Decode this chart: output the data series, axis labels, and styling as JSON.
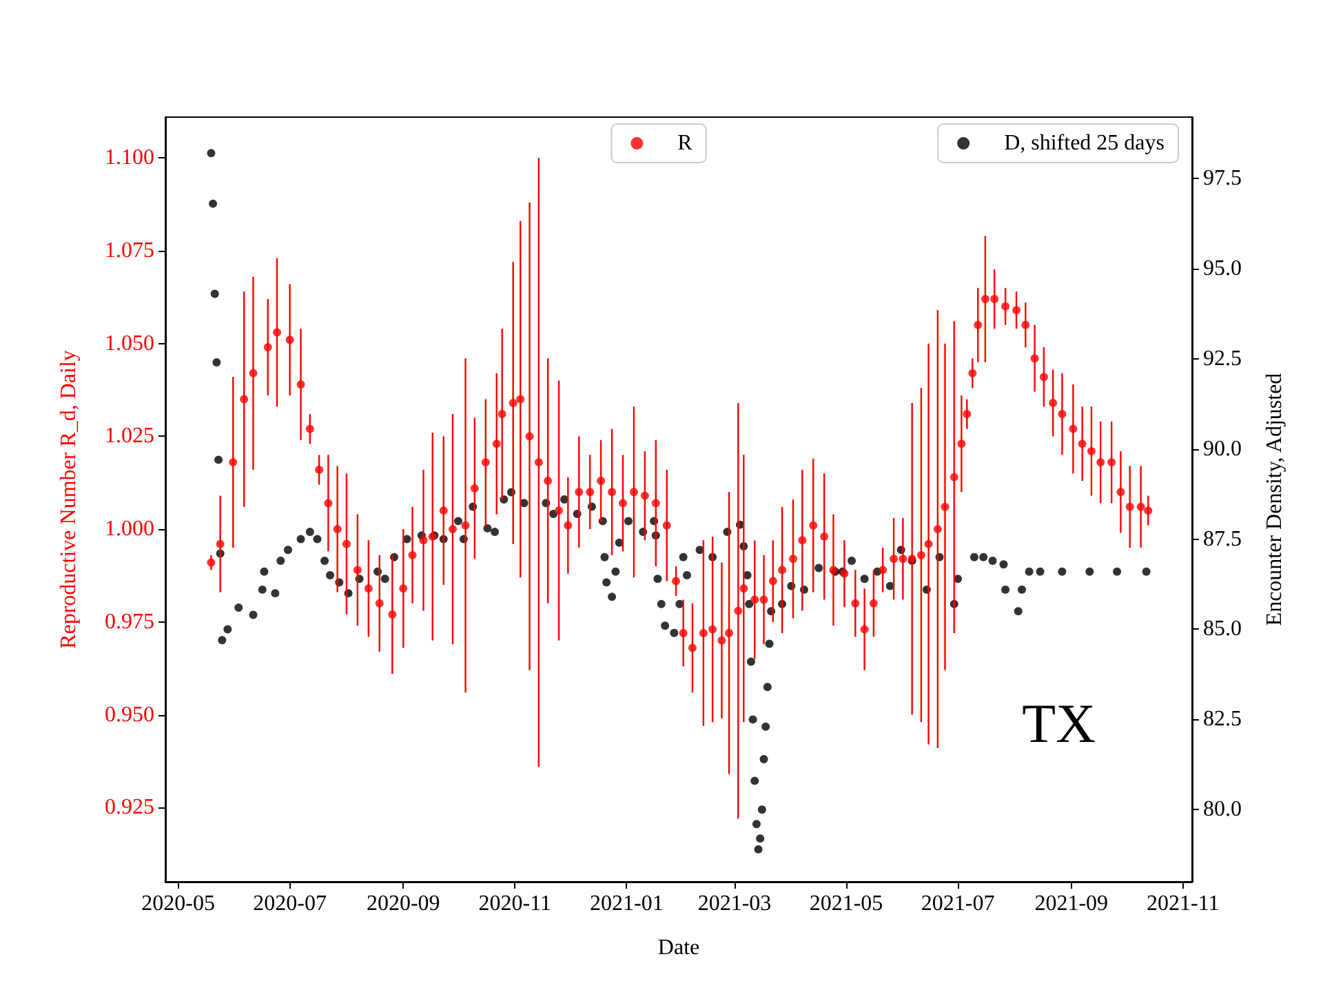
{
  "chart_data": {
    "type": "scatter",
    "xlabel": "Date",
    "ylabel": "Reproductive Number R_d, Daily",
    "y2label": "Encounter Density, Adjusted",
    "xlim": [
      "2020-04-24",
      "2021-11-06"
    ],
    "xticks": [
      "2020-05",
      "2020-07",
      "2020-09",
      "2020-11",
      "2021-01",
      "2021-03",
      "2021-05",
      "2021-07",
      "2021-09",
      "2021-11"
    ],
    "ylim": [
      0.905,
      1.111
    ],
    "yticks": [
      {
        "value": 0.925,
        "label": "0.925"
      },
      {
        "value": 0.95,
        "label": "0.950"
      },
      {
        "value": 0.975,
        "label": "0.975"
      },
      {
        "value": 1.0,
        "label": "1.000"
      },
      {
        "value": 1.025,
        "label": "1.025"
      },
      {
        "value": 1.05,
        "label": "1.050"
      },
      {
        "value": 1.075,
        "label": "1.075"
      },
      {
        "value": 1.1,
        "label": "1.100"
      }
    ],
    "y2lim": [
      78.0,
      99.2
    ],
    "y2ticks": [
      {
        "value": 80,
        "label": "80.0"
      },
      {
        "value": 82.5,
        "label": "82.5"
      },
      {
        "value": 85,
        "label": "85.0"
      },
      {
        "value": 87.5,
        "label": "87.5"
      },
      {
        "value": 90,
        "label": "90.0"
      },
      {
        "value": 92.5,
        "label": "92.5"
      },
      {
        "value": 95,
        "label": "95.0"
      },
      {
        "value": 97.5,
        "label": "97.5"
      }
    ],
    "grid": false,
    "legend": "top right",
    "marker": "circle",
    "annotations": [
      "TX"
    ],
    "series": [
      {
        "name": "R",
        "color": "#ff0000",
        "x": [
          "2020-05-19",
          "2020-05-24",
          "2020-05-31",
          "2020-06-06",
          "2020-06-11",
          "2020-06-19",
          "2020-06-24",
          "2020-07-01",
          "2020-07-07",
          "2020-07-12",
          "2020-07-17",
          "2020-07-22",
          "2020-07-27",
          "2020-08-01",
          "2020-08-07",
          "2020-08-13",
          "2020-08-19",
          "2020-08-26",
          "2020-09-01",
          "2020-09-06",
          "2020-09-12",
          "2020-09-17",
          "2020-09-23",
          "2020-09-28",
          "2020-10-05",
          "2020-10-10",
          "2020-10-16",
          "2020-10-22",
          "2020-10-25",
          "2020-10-31",
          "2020-11-04",
          "2020-11-09",
          "2020-11-14",
          "2020-11-19",
          "2020-11-25",
          "2020-11-30",
          "2020-12-06",
          "2020-12-12",
          "2020-12-18",
          "2020-12-24",
          "2020-12-30",
          "2021-01-05",
          "2021-01-11",
          "2021-01-17",
          "2021-01-23",
          "2021-01-28",
          "2021-02-01",
          "2021-02-06",
          "2021-02-12",
          "2021-02-17",
          "2021-02-22",
          "2021-02-26",
          "2021-03-03",
          "2021-03-06",
          "2021-03-12",
          "2021-03-17",
          "2021-03-22",
          "2021-03-27",
          "2021-04-02",
          "2021-04-07",
          "2021-04-13",
          "2021-04-19",
          "2021-04-24",
          "2021-04-30",
          "2021-05-06",
          "2021-05-11",
          "2021-05-16",
          "2021-05-21",
          "2021-05-27",
          "2021-06-01",
          "2021-06-06",
          "2021-06-11",
          "2021-06-15",
          "2021-06-20",
          "2021-06-24",
          "2021-06-29",
          "2021-07-03",
          "2021-07-06",
          "2021-07-09",
          "2021-07-12",
          "2021-07-16",
          "2021-07-21",
          "2021-07-27",
          "2021-08-02",
          "2021-08-07",
          "2021-08-12",
          "2021-08-17",
          "2021-08-22",
          "2021-08-27",
          "2021-09-02",
          "2021-09-07",
          "2021-09-12",
          "2021-09-17",
          "2021-09-23",
          "2021-09-28",
          "2021-10-03",
          "2021-10-09",
          "2021-10-13"
        ],
        "values": [
          0.991,
          0.996,
          1.018,
          1.035,
          1.042,
          1.049,
          1.053,
          1.051,
          1.039,
          1.027,
          1.016,
          1.007,
          1.0,
          0.996,
          0.989,
          0.984,
          0.98,
          0.977,
          0.984,
          0.993,
          0.997,
          0.998,
          1.005,
          1.0,
          1.001,
          1.011,
          1.018,
          1.023,
          1.031,
          1.034,
          1.035,
          1.025,
          1.018,
          1.013,
          1.005,
          1.001,
          1.01,
          1.01,
          1.013,
          1.01,
          1.007,
          1.01,
          1.009,
          1.007,
          1.001,
          0.986,
          0.972,
          0.968,
          0.972,
          0.973,
          0.97,
          0.972,
          0.978,
          0.984,
          0.981,
          0.981,
          0.986,
          0.989,
          0.992,
          0.997,
          1.001,
          0.998,
          0.989,
          0.988,
          0.98,
          0.973,
          0.98,
          0.989,
          0.992,
          0.992,
          0.992,
          0.993,
          0.996,
          1.0,
          1.006,
          1.014,
          1.023,
          1.031,
          1.042,
          1.055,
          1.062,
          1.062,
          1.06,
          1.059,
          1.055,
          1.046,
          1.041,
          1.034,
          1.031,
          1.027,
          1.023,
          1.021,
          1.018,
          1.018,
          1.01,
          1.006,
          1.006,
          1.005
        ],
        "errors": [
          0.002,
          0.013,
          0.023,
          0.029,
          0.026,
          0.013,
          0.02,
          0.015,
          0.015,
          0.004,
          0.004,
          0.013,
          0.017,
          0.019,
          0.015,
          0.013,
          0.013,
          0.016,
          0.016,
          0.013,
          0.019,
          0.028,
          0.02,
          0.031,
          0.045,
          0.019,
          0.017,
          0.019,
          0.023,
          0.038,
          0.048,
          0.063,
          0.082,
          0.033,
          0.035,
          0.013,
          0.015,
          0.01,
          0.011,
          0.017,
          0.013,
          0.023,
          0.012,
          0.017,
          0.015,
          0.004,
          0.009,
          0.012,
          0.025,
          0.025,
          0.021,
          0.038,
          0.056,
          0.036,
          0.016,
          0.012,
          0.011,
          0.017,
          0.016,
          0.019,
          0.018,
          0.017,
          0.015,
          0.009,
          0.009,
          0.011,
          0.009,
          0.006,
          0.011,
          0.011,
          0.042,
          0.045,
          0.054,
          0.059,
          0.044,
          0.042,
          0.013,
          0.004,
          0.004,
          0.01,
          0.017,
          0.008,
          0.005,
          0.005,
          0.006,
          0.009,
          0.008,
          0.009,
          0.011,
          0.012,
          0.01,
          0.012,
          0.011,
          0.011,
          0.011,
          0.011,
          0.011,
          0.004
        ]
      },
      {
        "name": "D, shifted 25 days",
        "color": "#000000",
        "axis": "y2",
        "x": [
          "2020-05-19",
          "2020-05-20",
          "2020-05-21",
          "2020-05-22",
          "2020-05-23",
          "2020-05-24",
          "2020-05-25",
          "2020-05-28",
          "2020-06-03",
          "2020-06-11",
          "2020-06-16",
          "2020-06-17",
          "2020-06-23",
          "2020-06-26",
          "2020-06-30",
          "2020-07-07",
          "2020-07-12",
          "2020-07-16",
          "2020-07-20",
          "2020-07-23",
          "2020-07-28",
          "2020-08-02",
          "2020-08-08",
          "2020-08-18",
          "2020-08-22",
          "2020-08-27",
          "2020-09-03",
          "2020-09-11",
          "2020-09-18",
          "2020-09-23",
          "2020-10-01",
          "2020-10-04",
          "2020-10-09",
          "2020-10-17",
          "2020-10-21",
          "2020-10-26",
          "2020-10-30",
          "2020-11-06",
          "2020-11-18",
          "2020-11-22",
          "2020-11-28",
          "2020-12-05",
          "2020-12-13",
          "2020-12-19",
          "2020-12-20",
          "2020-12-21",
          "2020-12-24",
          "2020-12-26",
          "2020-12-28",
          "2021-01-02",
          "2021-01-10",
          "2021-01-16",
          "2021-01-17",
          "2021-01-18",
          "2021-01-20",
          "2021-01-22",
          "2021-01-27",
          "2021-01-30",
          "2021-02-01",
          "2021-02-03",
          "2021-02-10",
          "2021-02-17",
          "2021-02-25",
          "2021-03-04",
          "2021-03-06",
          "2021-03-08",
          "2021-03-09",
          "2021-03-10",
          "2021-03-11",
          "2021-03-12",
          "2021-03-13",
          "2021-03-14",
          "2021-03-15",
          "2021-03-16",
          "2021-03-17",
          "2021-03-18",
          "2021-03-19",
          "2021-03-20",
          "2021-03-21",
          "2021-03-27",
          "2021-04-01",
          "2021-04-08",
          "2021-04-16",
          "2021-04-25",
          "2021-04-29",
          "2021-05-04",
          "2021-05-11",
          "2021-05-18",
          "2021-05-25",
          "2021-05-31",
          "2021-06-06",
          "2021-06-14",
          "2021-06-21",
          "2021-06-29",
          "2021-07-01",
          "2021-07-10",
          "2021-07-15",
          "2021-07-20",
          "2021-07-26",
          "2021-07-27",
          "2021-08-03",
          "2021-08-05",
          "2021-08-09",
          "2021-08-15",
          "2021-08-27",
          "2021-09-11",
          "2021-09-26",
          "2021-10-12"
        ],
        "values": [
          98.2,
          96.8,
          94.3,
          92.4,
          89.7,
          87.1,
          84.7,
          85.0,
          85.6,
          85.4,
          86.1,
          86.6,
          86.0,
          86.9,
          87.2,
          87.5,
          87.7,
          87.5,
          86.9,
          86.5,
          86.3,
          86.0,
          86.4,
          86.6,
          86.4,
          87.0,
          87.5,
          87.6,
          87.6,
          87.5,
          88.0,
          87.5,
          88.4,
          87.8,
          87.7,
          88.6,
          88.8,
          88.5,
          88.5,
          88.2,
          88.6,
          88.2,
          88.4,
          88.0,
          87.0,
          86.3,
          85.9,
          86.6,
          87.4,
          88.0,
          87.7,
          88.0,
          87.6,
          86.4,
          85.7,
          85.1,
          84.9,
          85.7,
          87.0,
          86.5,
          87.2,
          87.0,
          87.7,
          87.9,
          87.3,
          86.5,
          85.7,
          84.1,
          82.5,
          80.8,
          79.6,
          78.9,
          79.2,
          80.0,
          81.4,
          82.3,
          83.4,
          84.6,
          85.5,
          85.7,
          86.2,
          86.1,
          86.7,
          86.6,
          86.6,
          86.9,
          86.4,
          86.6,
          86.2,
          87.2,
          86.9,
          86.1,
          87.0,
          85.7,
          86.4,
          87.0,
          87.0,
          86.9,
          86.8,
          86.1,
          85.5,
          86.1,
          86.6,
          86.6,
          86.6,
          86.6,
          86.6,
          86.6
        ]
      }
    ]
  }
}
